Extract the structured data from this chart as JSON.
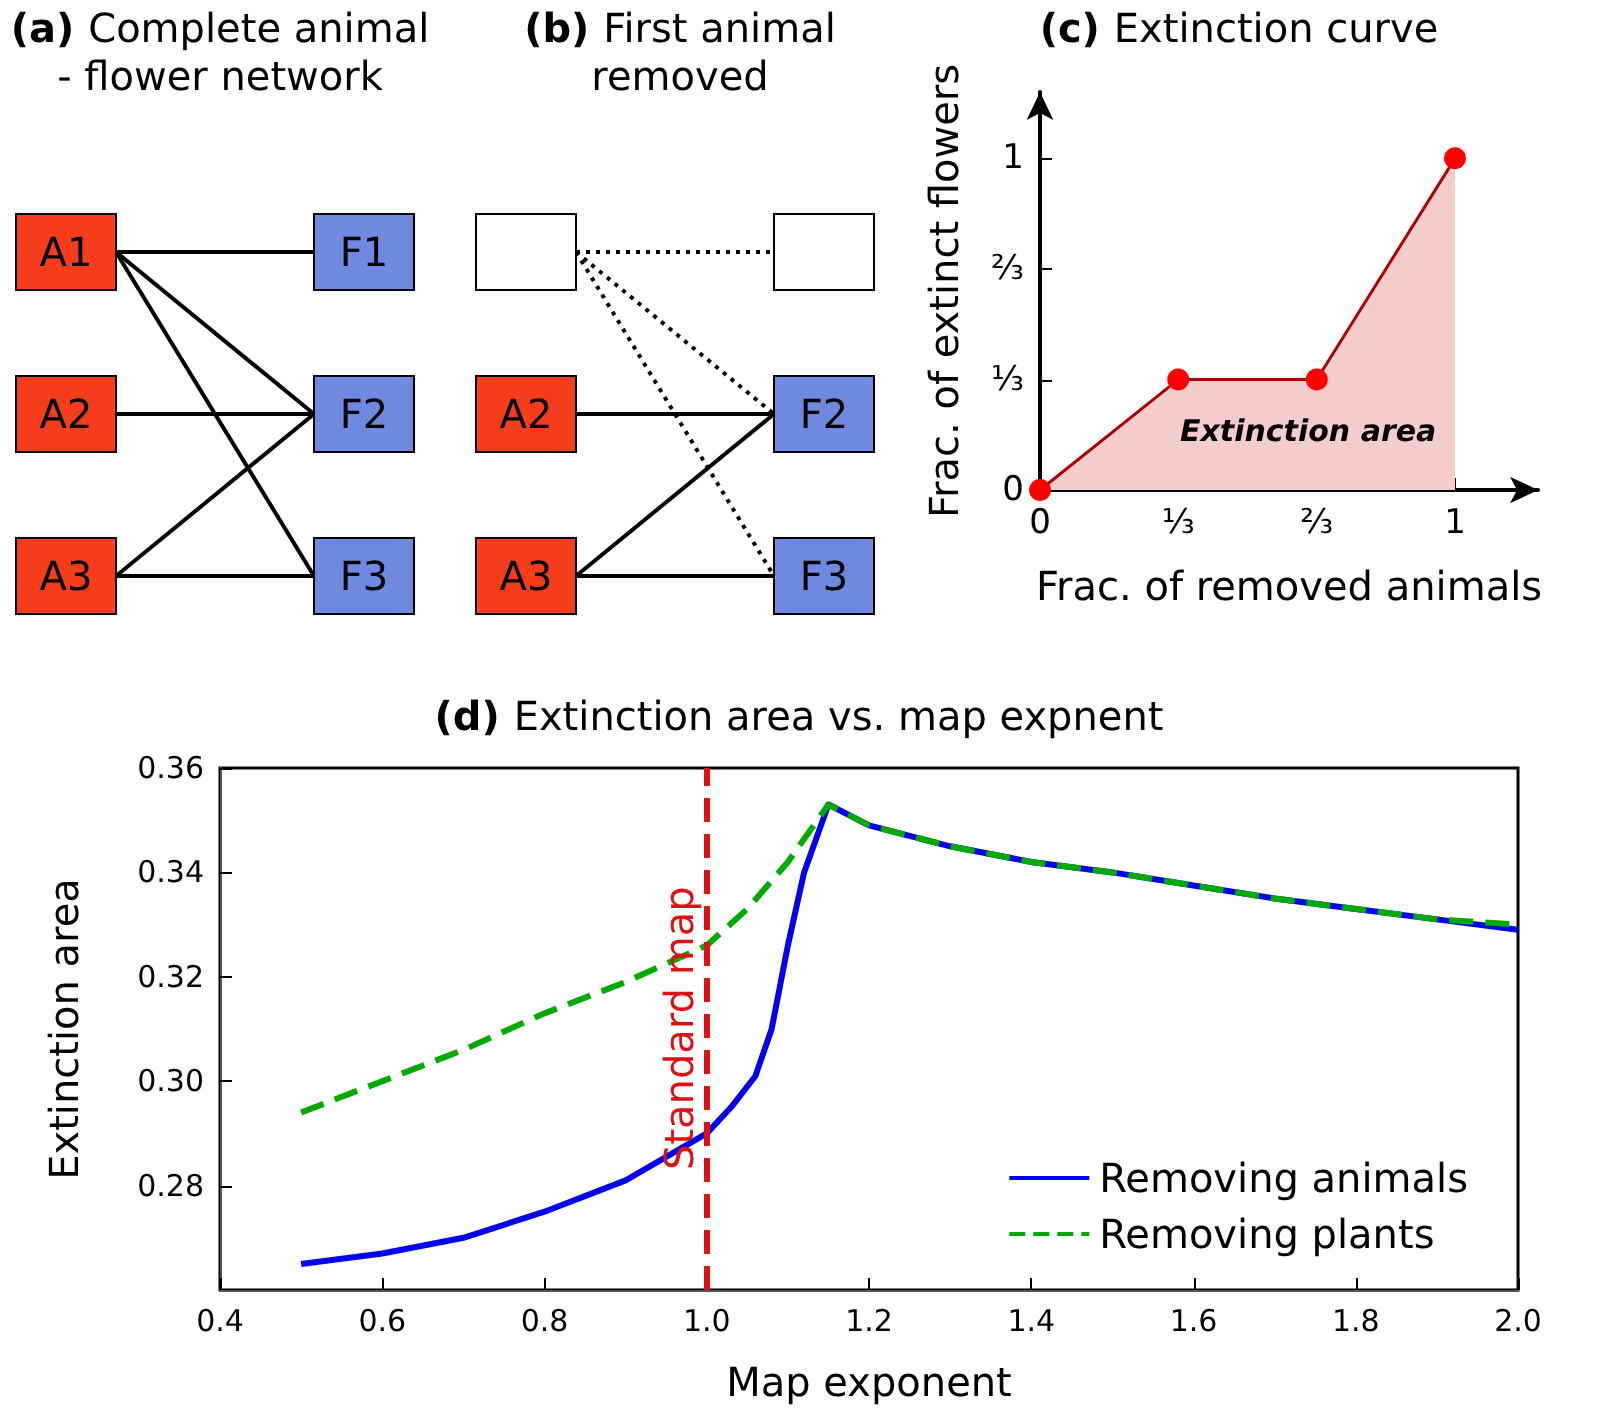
{
  "chart_data": [
    {
      "type": "other",
      "title": "(a) Complete animal - flower network",
      "annotations": [
        "A1",
        "A2",
        "A3",
        "F1",
        "F2",
        "F3"
      ],
      "colors": [
        "#f53d1c",
        "#f53d1c",
        "#f53d1c",
        "#6f88e0",
        "#6f88e0",
        "#6f88e0"
      ]
    },
    {
      "type": "other",
      "title": "(b) First animal removed",
      "annotations": [
        "A2",
        "A3",
        "F2",
        "F3"
      ],
      "colors": [
        "#f53d1c",
        "#f53d1c",
        "#6f88e0",
        "#6f88e0"
      ]
    },
    {
      "type": "area",
      "title": "(c) Extinction curve",
      "xlabel": "Frac. of removed animals",
      "ylabel": "Frac. of extinct flowers",
      "x": [
        0,
        0.333,
        0.667,
        1
      ],
      "values": [
        0,
        0.333,
        0.333,
        1
      ],
      "color": "#aa0000",
      "marker": "circle",
      "xlim": [
        0,
        1.2
      ],
      "ylim": [
        0,
        1.2
      ],
      "xticks": [
        0,
        {
          "value": 0.333,
          "label": "⅓"
        },
        {
          "value": 0.667,
          "label": "⅔"
        },
        1
      ],
      "yticks": [
        0,
        {
          "value": 0.333,
          "label": "⅓"
        },
        {
          "value": 0.667,
          "label": "⅔"
        },
        1
      ],
      "annotations": [
        "Extinction area"
      ]
    },
    {
      "type": "line",
      "title": "(d) Extinction area vs. map expnent",
      "xlabel": "Map exponent",
      "ylabel": "Extinction area",
      "legend": "bottom right",
      "grid": false,
      "xlim": [
        0.4,
        2.0
      ],
      "ylim": [
        0.26,
        0.36
      ],
      "xticks": [
        0.4,
        0.6,
        0.8,
        {
          "value": 1.0,
          "label": "1.0"
        },
        1.2,
        1.4,
        1.6,
        1.8,
        {
          "value": 2.0,
          "label": "2.0"
        }
      ],
      "yticks": [
        0.28,
        {
          "value": 0.3,
          "label": "0.30"
        },
        0.32,
        0.34,
        0.36
      ],
      "ref_lines": [
        {
          "axis": "x",
          "value": 1.0,
          "label": "Standard map",
          "color": "#dd1111",
          "line_style": "dashed"
        }
      ],
      "series": [
        {
          "name": "Removing animals",
          "color": "#0000ee",
          "line_style": "solid",
          "x": [
            0.5,
            0.6,
            0.7,
            0.8,
            0.9,
            1.0,
            1.03,
            1.06,
            1.08,
            1.1,
            1.12,
            1.15,
            1.2,
            1.3,
            1.4,
            1.5,
            1.6,
            1.7,
            1.8,
            1.9,
            2.0
          ],
          "values": [
            0.265,
            0.267,
            0.27,
            0.275,
            0.281,
            0.29,
            0.295,
            0.301,
            0.31,
            0.326,
            0.34,
            0.353,
            0.349,
            0.345,
            0.342,
            0.34,
            0.3375,
            0.335,
            0.333,
            0.331,
            0.329
          ]
        },
        {
          "name": "Removing plants",
          "color": "#00aa00",
          "line_style": "dashed",
          "x": [
            0.5,
            0.6,
            0.7,
            0.8,
            0.9,
            1.0,
            1.05,
            1.1,
            1.15,
            1.2,
            1.3,
            1.4,
            1.5,
            1.6,
            1.7,
            1.8,
            1.9,
            2.0
          ],
          "values": [
            0.294,
            0.3,
            0.306,
            0.313,
            0.319,
            0.326,
            0.333,
            0.342,
            0.353,
            0.349,
            0.345,
            0.342,
            0.34,
            0.3375,
            0.335,
            0.333,
            0.331,
            0.33
          ]
        }
      ]
    }
  ]
}
